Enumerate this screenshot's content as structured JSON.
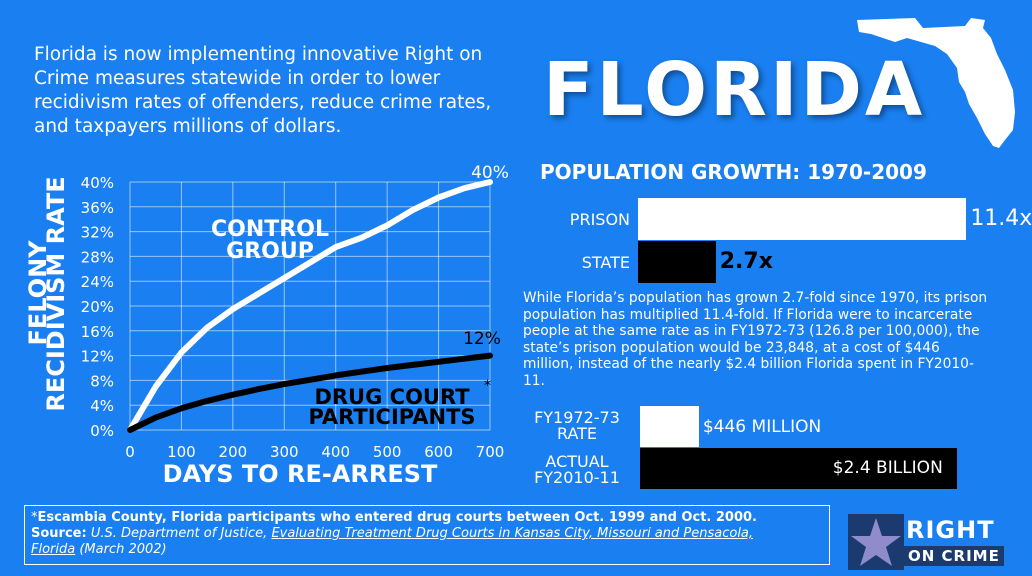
{
  "intro": "Florida is now implementing innovative Right on Crime measures statewide in order to lower recidivism rates of offenders, reduce crime rates, and taxpayers millions of dollars.",
  "big_title": "FLORIDA",
  "chart_data": [
    {
      "type": "line",
      "xlabel": "DAYS TO RE-ARREST",
      "ylabel": "FELONY RECIDIVISM RATE",
      "x_ticks": [
        "0",
        "100",
        "200",
        "300",
        "400",
        "500",
        "600",
        "700"
      ],
      "y_ticks": [
        "0%",
        "4%",
        "8%",
        "12%",
        "16%",
        "20%",
        "24%",
        "28%",
        "32%",
        "36%",
        "40%"
      ],
      "xlim": [
        0,
        700
      ],
      "ylim": [
        0,
        40
      ],
      "grid": true,
      "series": [
        {
          "name": "CONTROL GROUP",
          "color": "#ffffff",
          "x": [
            0,
            50,
            100,
            150,
            200,
            250,
            300,
            350,
            400,
            450,
            500,
            550,
            600,
            650,
            700
          ],
          "y": [
            0,
            7,
            12.5,
            16.5,
            19.5,
            22,
            24.5,
            27,
            29.5,
            31,
            33,
            35.5,
            37.5,
            39,
            40
          ],
          "end_label": "40%"
        },
        {
          "name": "DRUG COURT PARTICIPANTS",
          "name_marker": "*",
          "color": "#000000",
          "x": [
            0,
            50,
            100,
            150,
            200,
            250,
            300,
            350,
            400,
            450,
            500,
            550,
            600,
            650,
            700
          ],
          "y": [
            0,
            2,
            3.5,
            4.7,
            5.7,
            6.6,
            7.4,
            8.1,
            8.8,
            9.4,
            10,
            10.5,
            11,
            11.5,
            12
          ],
          "end_label": "12%"
        }
      ]
    },
    {
      "type": "bar",
      "title": "POPULATION GROWTH: 1970-2009",
      "categories": [
        "PRISON",
        "STATE"
      ],
      "values": [
        11.4,
        2.7
      ],
      "value_labels": [
        "11.4x",
        "2.7x"
      ],
      "colors": [
        "#ffffff",
        "#000000"
      ],
      "xlim": [
        0,
        12.5
      ]
    },
    {
      "type": "bar",
      "categories": [
        "FY1972-73 RATE",
        "ACTUAL FY2010-11"
      ],
      "values": [
        0.446,
        2.4
      ],
      "value_labels": [
        "$446 MILLION",
        "$2.4 BILLION"
      ],
      "colors": [
        "#ffffff",
        "#000000"
      ],
      "xlim": [
        0,
        2.5
      ]
    }
  ],
  "paragraph": "While Florida’s population has grown 2.7-fold since 1970, its prison population has multiplied 11.4-fold. If Florida were to incarcerate people at the same rate as in FY1972-73 (126.8 per 100,000), the state’s prison population would be 23,848, at a cost of $446 million, instead of the nearly $2.4 billion Florida spent in FY2010-11.",
  "bar1": {
    "label1": "PRISON",
    "label2": "STATE"
  },
  "bar2": {
    "label1a": "FY1972-73",
    "label1b": "RATE",
    "label2a": "ACTUAL",
    "label2b": "FY2010-11"
  },
  "footnote": {
    "star": "*",
    "note": "Escambia County, Florida participants who entered drug courts between Oct. 1999 and Oct. 2000.",
    "source_label": "Source:",
    "source_pre": "U.S. Department of Justice,",
    "source_link_a": "Evaluating Treatment Drug Courts in Kansas City, Missouri and Pensacola,",
    "source_link_b": "Florida",
    "source_post": "(March 2002)"
  },
  "logo": {
    "line1": "RIGHT",
    "line2": "ON CRIME",
    "star_color": "#8f8cc9"
  },
  "colors": {
    "background": "#1a7ff0",
    "white": "#ffffff",
    "black": "#000000"
  }
}
